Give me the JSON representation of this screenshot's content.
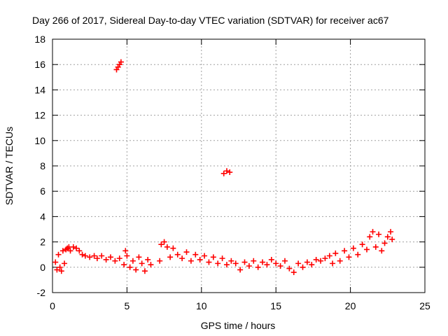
{
  "chart_data": {
    "type": "scatter",
    "title": "Day 266 of 2017, Sidereal Day-to-day VTEC variation (SDTVAR) for receiver ac67",
    "xlabel": "GPS time / hours",
    "ylabel": "SDTVAR / TECUs",
    "xlim": [
      0,
      25
    ],
    "ylim": [
      -2,
      18
    ],
    "xticks": [
      0,
      5,
      10,
      15,
      20,
      25
    ],
    "yticks": [
      -2,
      0,
      2,
      4,
      6,
      8,
      10,
      12,
      14,
      16,
      18
    ],
    "grid": true,
    "marker": "plus",
    "color": "#ff0000",
    "series": [
      {
        "name": "SDTVAR",
        "points": [
          [
            0.2,
            0.4
          ],
          [
            0.3,
            -0.2
          ],
          [
            0.4,
            1.0
          ],
          [
            0.5,
            0.0
          ],
          [
            0.6,
            -0.3
          ],
          [
            0.7,
            1.3
          ],
          [
            0.8,
            0.3
          ],
          [
            0.9,
            1.4
          ],
          [
            1.0,
            1.5
          ],
          [
            1.1,
            1.6
          ],
          [
            1.2,
            1.3
          ],
          [
            1.4,
            1.6
          ],
          [
            1.6,
            1.5
          ],
          [
            1.8,
            1.3
          ],
          [
            2.0,
            1.0
          ],
          [
            2.2,
            0.9
          ],
          [
            2.5,
            0.8
          ],
          [
            2.8,
            0.9
          ],
          [
            3.0,
            0.7
          ],
          [
            3.3,
            0.9
          ],
          [
            3.6,
            0.6
          ],
          [
            3.9,
            0.8
          ],
          [
            4.2,
            0.5
          ],
          [
            4.5,
            0.7
          ],
          [
            4.3,
            15.6
          ],
          [
            4.4,
            15.8
          ],
          [
            4.5,
            16.0
          ],
          [
            4.6,
            16.2
          ],
          [
            4.8,
            0.2
          ],
          [
            4.9,
            1.3
          ],
          [
            5.0,
            0.9
          ],
          [
            5.2,
            0.0
          ],
          [
            5.4,
            0.5
          ],
          [
            5.6,
            -0.2
          ],
          [
            5.8,
            0.8
          ],
          [
            6.0,
            0.3
          ],
          [
            6.2,
            -0.3
          ],
          [
            6.4,
            0.6
          ],
          [
            6.6,
            0.2
          ],
          [
            7.2,
            0.5
          ],
          [
            7.3,
            1.8
          ],
          [
            7.5,
            2.0
          ],
          [
            7.7,
            1.6
          ],
          [
            7.9,
            0.8
          ],
          [
            8.1,
            1.5
          ],
          [
            8.4,
            1.0
          ],
          [
            8.7,
            0.7
          ],
          [
            9.0,
            1.2
          ],
          [
            9.3,
            0.5
          ],
          [
            9.6,
            1.0
          ],
          [
            9.9,
            0.6
          ],
          [
            10.2,
            0.9
          ],
          [
            10.5,
            0.4
          ],
          [
            10.8,
            0.8
          ],
          [
            11.1,
            0.3
          ],
          [
            11.4,
            0.7
          ],
          [
            11.7,
            0.2
          ],
          [
            12.0,
            0.5
          ],
          [
            11.5,
            7.4
          ],
          [
            11.7,
            7.6
          ],
          [
            11.9,
            7.5
          ],
          [
            12.3,
            0.3
          ],
          [
            12.6,
            -0.2
          ],
          [
            12.9,
            0.4
          ],
          [
            13.2,
            0.1
          ],
          [
            13.5,
            0.5
          ],
          [
            13.8,
            0.0
          ],
          [
            14.1,
            0.4
          ],
          [
            14.4,
            0.2
          ],
          [
            14.7,
            0.6
          ],
          [
            15.0,
            0.3
          ],
          [
            15.3,
            0.1
          ],
          [
            15.6,
            0.5
          ],
          [
            15.9,
            -0.1
          ],
          [
            16.2,
            -0.4
          ],
          [
            16.5,
            0.3
          ],
          [
            16.8,
            0.0
          ],
          [
            17.1,
            0.4
          ],
          [
            17.4,
            0.2
          ],
          [
            17.7,
            0.6
          ],
          [
            18.0,
            0.5
          ],
          [
            18.3,
            0.7
          ],
          [
            18.6,
            0.9
          ],
          [
            18.8,
            0.3
          ],
          [
            19.0,
            1.1
          ],
          [
            19.3,
            0.5
          ],
          [
            19.6,
            1.3
          ],
          [
            19.9,
            0.8
          ],
          [
            20.2,
            1.5
          ],
          [
            20.5,
            1.0
          ],
          [
            20.8,
            1.8
          ],
          [
            21.1,
            1.4
          ],
          [
            21.3,
            2.4
          ],
          [
            21.5,
            2.8
          ],
          [
            21.7,
            1.6
          ],
          [
            21.9,
            2.6
          ],
          [
            22.1,
            1.3
          ],
          [
            22.3,
            1.9
          ],
          [
            22.5,
            2.4
          ],
          [
            22.7,
            2.8
          ],
          [
            22.8,
            2.2
          ]
        ]
      }
    ]
  }
}
